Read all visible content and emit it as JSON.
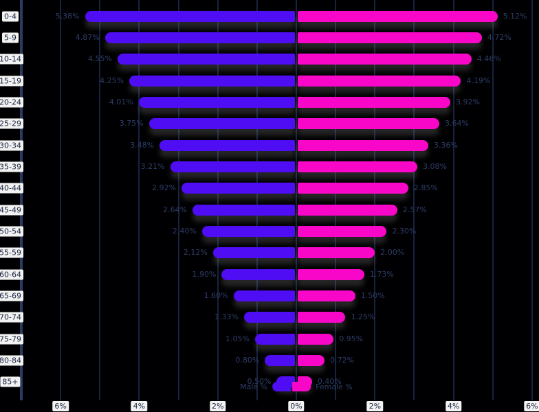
{
  "chart_data": {
    "type": "bar",
    "subtype": "population_pyramid",
    "title": "",
    "xlabel": "",
    "ylabel": "",
    "categories": [
      "0-4",
      "5-9",
      "10-14",
      "15-19",
      "20-24",
      "25-29",
      "30-34",
      "35-39",
      "40-44",
      "45-49",
      "50-54",
      "55-59",
      "60-64",
      "65-69",
      "70-74",
      "75-79",
      "80-84",
      "85+"
    ],
    "series": [
      {
        "name": "Male %",
        "side": "left",
        "color": "#4e0df2",
        "values": [
          5.38,
          4.87,
          4.55,
          4.25,
          4.01,
          3.75,
          3.48,
          3.21,
          2.92,
          2.64,
          2.4,
          2.12,
          1.9,
          1.6,
          1.33,
          1.05,
          0.8,
          0.5
        ],
        "labels": [
          "5.38%",
          "4.87%",
          "4.55%",
          "4.25%",
          "4.01%",
          "3.75%",
          "3.48%",
          "3.21%",
          "2.92%",
          "2.64%",
          "2.40%",
          "2.12%",
          "1.90%",
          "1.60%",
          "1.33%",
          "1.05%",
          "0.80%",
          "0.50%"
        ]
      },
      {
        "name": "Female %",
        "side": "right",
        "color": "#f807c8",
        "values": [
          5.12,
          4.72,
          4.46,
          4.19,
          3.92,
          3.64,
          3.36,
          3.08,
          2.85,
          2.57,
          2.3,
          2.0,
          1.73,
          1.5,
          1.25,
          0.95,
          0.72,
          0.4
        ],
        "labels": [
          "5.12%",
          "4.72%",
          "4.46%",
          "4.19%",
          "3.92%",
          "3.64%",
          "3.36%",
          "3.08%",
          "2.85%",
          "2.57%",
          "2.30%",
          "2.00%",
          "1.73%",
          "1.50%",
          "1.25%",
          "0.95%",
          "0.72%",
          "0.40%"
        ]
      }
    ],
    "x_axis": {
      "tick_labels": [
        "6%",
        "4%",
        "2%",
        "0%",
        "2%",
        "4%",
        "6%"
      ],
      "tick_values": [
        -6,
        -4,
        -2,
        0,
        2,
        4,
        6
      ],
      "gridline_step_percent": 1,
      "range_percent": [
        -7,
        6.2
      ],
      "grid": true
    },
    "legend": {
      "position": "bottom-center",
      "male_label": "Male %",
      "female_label": "Female %"
    },
    "colors": {
      "background": "#000002",
      "male": "#4e0df2",
      "female": "#f807c8",
      "gridline": "#18233f",
      "axis_spine": "#2b3a5e",
      "value_label": "#2e3d66",
      "chip_bg": "#f2f2f2",
      "chip_text": "#1a2440"
    }
  }
}
